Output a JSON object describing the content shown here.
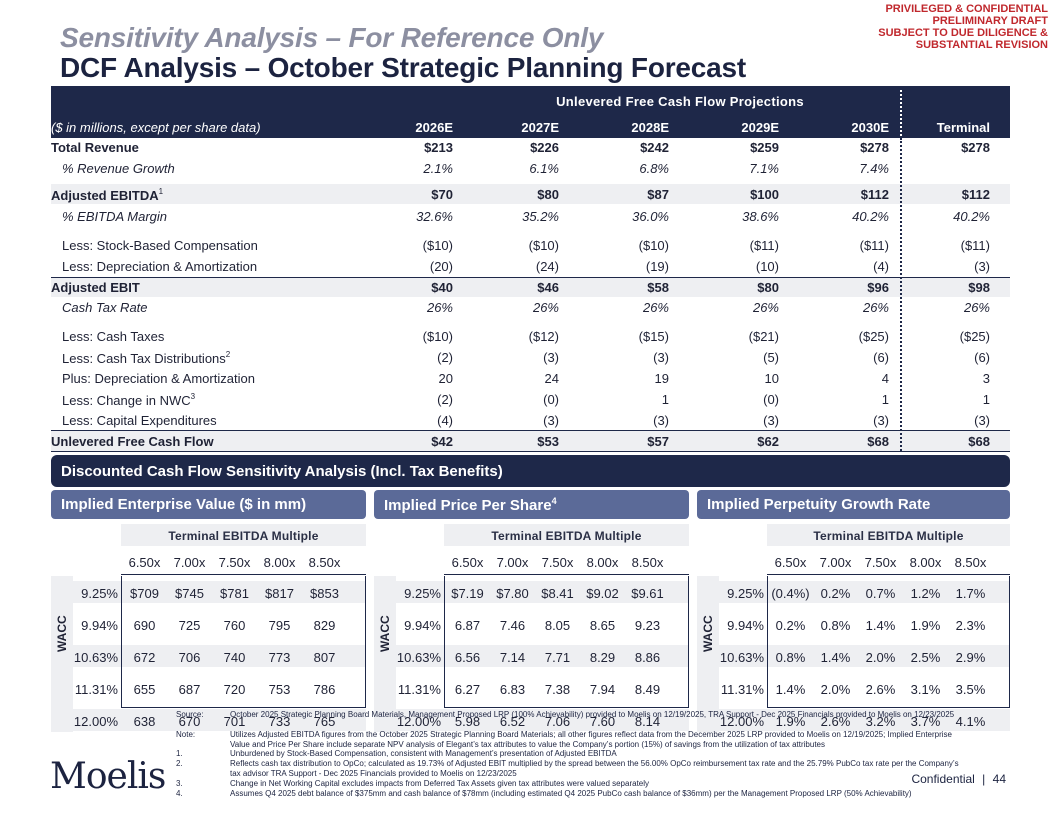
{
  "confidential_banner": [
    "PRIVILEGED & CONFIDENTIAL",
    "PRELIMINARY DRAFT",
    "SUBJECT TO DUE DILIGENCE &",
    "SUBSTANTIAL REVISION"
  ],
  "title": "Sensitivity Analysis – For Reference Only",
  "subtitle": "DCF Analysis – October Strategic Planning Forecast",
  "dcf": {
    "projections_title": "Unlevered Free Cash Flow Projections",
    "units_label": "($ in millions, except per share data)",
    "years": [
      "2026E",
      "2027E",
      "2028E",
      "2029E",
      "2030E",
      "Terminal"
    ],
    "rows": [
      {
        "label": "Total Revenue",
        "values": [
          "$213",
          "$226",
          "$242",
          "$259",
          "$278",
          "$278"
        ]
      },
      {
        "label": "% Revenue Growth",
        "values": [
          "2.1%",
          "6.1%",
          "6.8%",
          "7.1%",
          "7.4%",
          ""
        ]
      },
      {
        "label": "Adjusted EBITDA",
        "sup": "1",
        "values": [
          "$70",
          "$80",
          "$87",
          "$100",
          "$112",
          "$112"
        ]
      },
      {
        "label": "% EBITDA Margin",
        "values": [
          "32.6%",
          "35.2%",
          "36.0%",
          "38.6%",
          "40.2%",
          "40.2%"
        ]
      },
      {
        "label": "Less: Stock-Based Compensation",
        "values": [
          "($10)",
          "($10)",
          "($10)",
          "($11)",
          "($11)",
          "($11)"
        ]
      },
      {
        "label": "Less: Depreciation & Amortization",
        "values": [
          "(20)",
          "(24)",
          "(19)",
          "(10)",
          "(4)",
          "(3)"
        ]
      },
      {
        "label": "Adjusted EBIT",
        "values": [
          "$40",
          "$46",
          "$58",
          "$80",
          "$96",
          "$98"
        ]
      },
      {
        "label": "Cash Tax Rate",
        "values": [
          "26%",
          "26%",
          "26%",
          "26%",
          "26%",
          "26%"
        ]
      },
      {
        "label": "Less: Cash Taxes",
        "values": [
          "($10)",
          "($12)",
          "($15)",
          "($21)",
          "($25)",
          "($25)"
        ]
      },
      {
        "label": "Less: Cash Tax Distributions",
        "sup": "2",
        "values": [
          "(2)",
          "(3)",
          "(3)",
          "(5)",
          "(6)",
          "(6)"
        ]
      },
      {
        "label": "Plus: Depreciation & Amortization",
        "values": [
          "20",
          "24",
          "19",
          "10",
          "4",
          "3"
        ]
      },
      {
        "label": "Less: Change in NWC",
        "sup": "3",
        "values": [
          "(2)",
          "(0)",
          "1",
          "(0)",
          "1",
          "1"
        ]
      },
      {
        "label": "Less: Capital Expenditures",
        "values": [
          "(4)",
          "(3)",
          "(3)",
          "(3)",
          "(3)",
          "(3)"
        ]
      },
      {
        "label": "Unlevered Free Cash Flow",
        "values": [
          "$42",
          "$53",
          "$57",
          "$62",
          "$68",
          "$68"
        ]
      }
    ]
  },
  "sensitivity": {
    "banner": "Discounted Cash Flow Sensitivity Analysis (Incl. Tax Benefits)",
    "multiple_header": "Terminal EBITDA Multiple",
    "wacc_label": "WACC",
    "multiples": [
      "6.50x",
      "7.00x",
      "7.50x",
      "8.00x",
      "8.50x"
    ],
    "waccs": [
      "9.25%",
      "9.94%",
      "10.63%",
      "11.31%",
      "12.00%"
    ],
    "panels": [
      {
        "title": "Implied Enterprise Value ($ in mm)",
        "sup": "",
        "values": [
          [
            "$709",
            "$745",
            "$781",
            "$817",
            "$853"
          ],
          [
            "690",
            "725",
            "760",
            "795",
            "829"
          ],
          [
            "672",
            "706",
            "740",
            "773",
            "807"
          ],
          [
            "655",
            "687",
            "720",
            "753",
            "786"
          ],
          [
            "638",
            "670",
            "701",
            "733",
            "765"
          ]
        ]
      },
      {
        "title": "Implied Price Per Share",
        "sup": "4",
        "values": [
          [
            "$7.19",
            "$7.80",
            "$8.41",
            "$9.02",
            "$9.61"
          ],
          [
            "6.87",
            "7.46",
            "8.05",
            "8.65",
            "9.23"
          ],
          [
            "6.56",
            "7.14",
            "7.71",
            "8.29",
            "8.86"
          ],
          [
            "6.27",
            "6.83",
            "7.38",
            "7.94",
            "8.49"
          ],
          [
            "5.98",
            "6.52",
            "7.06",
            "7.60",
            "8.14"
          ]
        ]
      },
      {
        "title": "Implied Perpetuity Growth Rate",
        "sup": "",
        "values": [
          [
            "(0.4%)",
            "0.2%",
            "0.7%",
            "1.2%",
            "1.7%"
          ],
          [
            "0.2%",
            "0.8%",
            "1.4%",
            "1.9%",
            "2.3%"
          ],
          [
            "0.8%",
            "1.4%",
            "2.0%",
            "2.5%",
            "2.9%"
          ],
          [
            "1.4%",
            "2.0%",
            "2.6%",
            "3.1%",
            "3.5%"
          ],
          [
            "1.9%",
            "2.6%",
            "3.2%",
            "3.7%",
            "4.1%"
          ]
        ]
      }
    ]
  },
  "footnotes": [
    {
      "key": "Source:",
      "text": "October 2025 Strategic Planning Board Materials, Management Proposed LRP (100% Achievability) provided to Moelis on 12/19/2025, TRA Support - Dec 2025 Financials provided to Moelis on 12/23/2025"
    },
    {
      "key": "Note:",
      "text": "Utilizes Adjusted EBITDA figures from the October 2025 Strategic Planning Board Materials; all other figures reflect data from the December 2025 LRP provided to Moelis on 12/19/2025; Implied Enterprise Value and Price Per Share include separate NPV analysis of Elegant’s tax attributes to value the Company’s portion (15%) of savings from the utilization of tax attributes"
    },
    {
      "key": "1.",
      "text": "Unburdened by Stock-Based Compensation, consistent with Management’s presentation of Adjusted EBITDA"
    },
    {
      "key": "2.",
      "text": "Reflects cash tax distribution to OpCo; calculated as 19.73% of Adjusted EBIT multiplied by the spread between the 56.00% OpCo reimbursement tax rate and the 25.79% PubCo tax rate per the Company’s tax advisor TRA Support - Dec 2025 Financials provided to Moelis on 12/23/2025"
    },
    {
      "key": "3.",
      "text": "Change in Net Working Capital excludes impacts from Deferred Tax Assets given tax attributes were valued separately"
    },
    {
      "key": "4.",
      "text": "Assumes Q4 2025 debt balance of $375mm and cash balance of $78mm (including estimated Q4 2025 PubCo cash balance of $36mm) per the Management Proposed LRP (50% Achievability)"
    }
  ],
  "footer": {
    "logo": "Moelis",
    "confidential": "Confidential",
    "separator": "|",
    "page": "44"
  }
}
